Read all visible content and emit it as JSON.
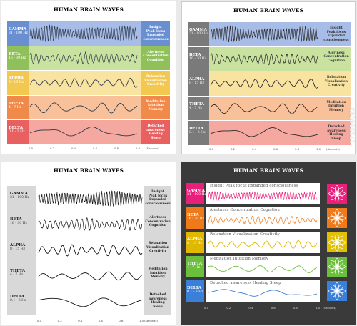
{
  "title": "HUMAN BRAIN WAVES",
  "bands": [
    {
      "name": "GAMMA",
      "hz": "31 - 100 Hz",
      "desc": [
        "Insight",
        "Peak focus",
        "Expanded",
        "consciousness"
      ],
      "desc_line": "Insight   Peak focus   Expanded consciousness",
      "freq": 40,
      "amp": 0.75,
      "color": "#e8207a",
      "bg": "#6a8fd0",
      "bg2": "#a7bde8"
    },
    {
      "name": "BETA",
      "hz": "16 - 30 Hz",
      "desc": [
        "Alertness",
        "Concentration",
        "Cognition"
      ],
      "desc_line": "Alertness   Concentration   Cognition",
      "freq": 20,
      "amp": 0.6,
      "color": "#f07a1a",
      "bg": "#8fc05a",
      "bg2": "#c9e2a0"
    },
    {
      "name": "ALPHA",
      "hz": "8 - 15 Hz",
      "desc": [
        "Relaxation",
        "Visualization",
        "Creativity"
      ],
      "desc_line": "Relaxation   Visualization   Creativity",
      "freq": 10,
      "amp": 0.6,
      "color": "#e0b800",
      "bg": "#f3c850",
      "bg2": "#f8e3a0"
    },
    {
      "name": "THETA",
      "hz": "4 - 7 Hz",
      "desc": [
        "Meditation",
        "Intuition",
        "Memory"
      ],
      "desc_line": "Meditation   Intuition   Memory",
      "freq": 5,
      "amp": 0.55,
      "color": "#6cbf3c",
      "bg": "#f08a4a",
      "bg2": "#f8c19a"
    },
    {
      "name": "DELTA",
      "hz": "0.1 - 3 Hz",
      "desc": [
        "Detached",
        "awareness",
        "Healing",
        "Sleep"
      ],
      "desc_line": "Detached awareness   Healing Sleep",
      "freq": 2,
      "amp": 0.55,
      "color": "#3a7fd8",
      "bg": "#e86060",
      "bg2": "#f4a8a0"
    }
  ],
  "ticks": [
    "0.0",
    "0.2",
    "0.4",
    "0.6",
    "0.8",
    "1.0"
  ],
  "axis_name": "(Seconds)",
  "watermark": "172519183"
}
